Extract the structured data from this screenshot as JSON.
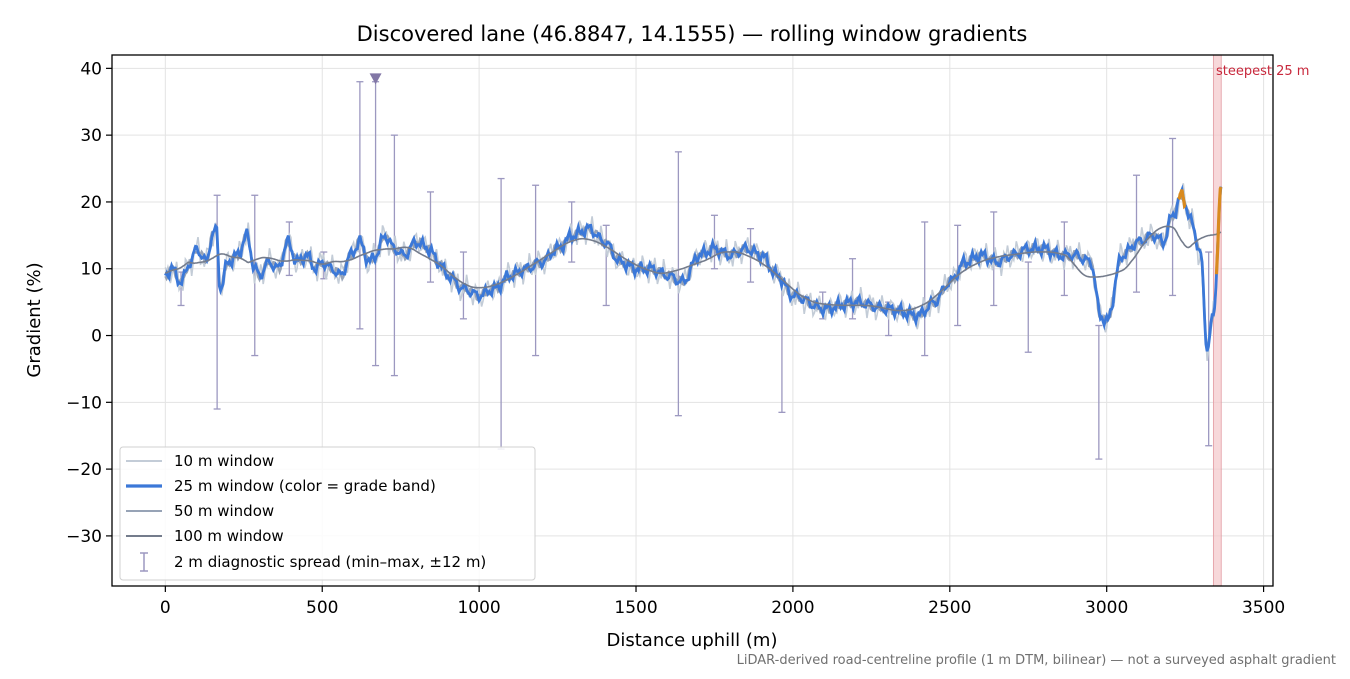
{
  "chart_data": {
    "type": "line",
    "title": "Discovered lane (46.8847, 14.1555) — rolling window gradients",
    "xlabel": "Distance uphill (m)",
    "ylabel": "Gradient (%)",
    "xlim": [
      -170,
      3530
    ],
    "ylim": [
      -37.5,
      42
    ],
    "xticks": [
      0,
      500,
      1000,
      1500,
      2000,
      2500,
      3000,
      3500
    ],
    "xtick_labels": [
      "0",
      "500",
      "1000",
      "1500",
      "2000",
      "2500",
      "3000",
      "3500"
    ],
    "yticks": [
      -30,
      -20,
      -10,
      0,
      10,
      20,
      30,
      40
    ],
    "ytick_labels": [
      "−30",
      "−20",
      "−10",
      "0",
      "10",
      "20",
      "30",
      "40"
    ],
    "grid": true,
    "legend_position": "lower-left",
    "colors": {
      "w10": "#c3ccd7",
      "w25": "#3b78d8",
      "w25_steep": "#d98a1e",
      "w50": "#97a3b6",
      "w100": "#747c8c",
      "errorbar": "#9c98c0",
      "marker": "#8277a6",
      "highlight": "#f4c7ca",
      "annotation": "#c8283c",
      "note": "#707070"
    },
    "legend": [
      {
        "label": "10 m window",
        "key": "w10"
      },
      {
        "label": "25 m window (color = grade band)",
        "key": "w25"
      },
      {
        "label": "50 m window",
        "key": "w50"
      },
      {
        "label": "100 m window",
        "key": "w100"
      },
      {
        "label": "2 m diagnostic spread (min–max, ±12 m)",
        "key": "errorbar"
      }
    ],
    "highlight_band": {
      "x0": 3340,
      "x1": 3365,
      "label": "steepest 25 m"
    },
    "marker": {
      "x": 670,
      "y": 38.5,
      "shape": "down-triangle"
    },
    "note": "LiDAR-derived road-centreline profile (1 m DTM, bilinear) — not a surveyed asphalt gradient",
    "anchors_x": [
      0,
      20,
      50,
      80,
      100,
      130,
      150,
      162,
      175,
      200,
      230,
      260,
      285,
      300,
      330,
      360,
      390,
      420,
      450,
      480,
      500,
      530,
      560,
      590,
      620,
      650,
      670,
      700,
      730,
      760,
      800,
      840,
      870,
      900,
      950,
      1000,
      1050,
      1100,
      1150,
      1200,
      1250,
      1300,
      1350,
      1400,
      1450,
      1500,
      1550,
      1600,
      1650,
      1700,
      1750,
      1800,
      1850,
      1900,
      1950,
      2000,
      2100,
      2200,
      2300,
      2400,
      2450,
      2500,
      2550,
      2600,
      2650,
      2700,
      2750,
      2800,
      2850,
      2900,
      2950,
      2980,
      3000,
      3050,
      3100,
      3150,
      3180,
      3210,
      3240,
      3270,
      3300,
      3320,
      3340,
      3365
    ],
    "anchors_y": [
      9,
      10,
      8,
      11,
      13,
      11,
      15,
      16,
      7,
      11,
      12,
      15,
      10,
      9,
      11,
      10,
      14,
      11,
      12,
      10,
      11,
      10,
      9,
      12,
      14,
      11,
      12,
      15,
      13,
      12,
      14,
      13,
      11,
      9,
      7,
      6,
      7,
      9,
      10,
      11,
      13,
      15,
      16,
      14,
      11,
      10,
      10,
      9,
      8,
      12,
      13,
      12,
      13,
      12,
      9,
      6,
      4,
      5,
      4,
      3,
      5,
      8,
      11,
      12,
      11,
      12,
      13,
      13,
      12,
      12,
      11,
      3,
      2,
      12,
      14,
      15,
      14,
      18,
      21,
      17,
      12,
      -2,
      3,
      22
    ],
    "series_10m_noise": 2.4,
    "series_25m_noise": 1.1,
    "series_50m_noise": 0.9,
    "series_100m_smooth": 90,
    "steepest_segments_25m": [
      [
        3228,
        3250
      ],
      [
        3350,
        3365
      ]
    ],
    "error_bars": [
      {
        "x": 50,
        "lo": 4.5,
        "hi": 9.5
      },
      {
        "x": 165,
        "lo": -11,
        "hi": 21
      },
      {
        "x": 285,
        "lo": -3,
        "hi": 21
      },
      {
        "x": 395,
        "lo": 9,
        "hi": 17
      },
      {
        "x": 505,
        "lo": 8.5,
        "hi": 12.5
      },
      {
        "x": 620,
        "lo": 1,
        "hi": 38
      },
      {
        "x": 670,
        "lo": -4.5,
        "hi": 38
      },
      {
        "x": 730,
        "lo": -6,
        "hi": 30
      },
      {
        "x": 845,
        "lo": 8,
        "hi": 21.5
      },
      {
        "x": 950,
        "lo": 2.5,
        "hi": 12.5
      },
      {
        "x": 1070,
        "lo": -17,
        "hi": 23.5
      },
      {
        "x": 1180,
        "lo": -3,
        "hi": 22.5
      },
      {
        "x": 1295,
        "lo": 11,
        "hi": 20
      },
      {
        "x": 1405,
        "lo": 4.5,
        "hi": 16.5
      },
      {
        "x": 1635,
        "lo": -12,
        "hi": 27.5
      },
      {
        "x": 1750,
        "lo": 10,
        "hi": 18
      },
      {
        "x": 1865,
        "lo": 8,
        "hi": 16
      },
      {
        "x": 1965,
        "lo": -11.5,
        "hi": 8.5
      },
      {
        "x": 2095,
        "lo": 2.5,
        "hi": 6.5
      },
      {
        "x": 2190,
        "lo": 2.5,
        "hi": 11.5
      },
      {
        "x": 2305,
        "lo": 0,
        "hi": 5
      },
      {
        "x": 2420,
        "lo": -3,
        "hi": 17
      },
      {
        "x": 2525,
        "lo": 1.5,
        "hi": 16.5
      },
      {
        "x": 2640,
        "lo": 4.5,
        "hi": 18.5
      },
      {
        "x": 2750,
        "lo": -2.5,
        "hi": 11
      },
      {
        "x": 2865,
        "lo": 6,
        "hi": 17
      },
      {
        "x": 2975,
        "lo": -18.5,
        "hi": 1.5
      },
      {
        "x": 3095,
        "lo": 6.5,
        "hi": 24
      },
      {
        "x": 3210,
        "lo": 6,
        "hi": 29.5
      },
      {
        "x": 3325,
        "lo": -16.5,
        "hi": 12.5
      }
    ]
  }
}
